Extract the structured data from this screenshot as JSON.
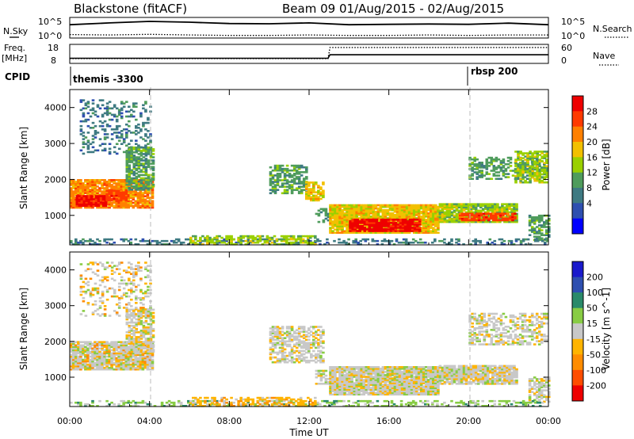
{
  "header": {
    "station": "Blackstone (fitACF)",
    "beam_dates": "Beam 09 01/Aug/2015 - 02/Aug/2015"
  },
  "panels": {
    "nsky": {
      "left_label": "N.Sky",
      "left_ticks": [
        "10^5",
        "10^0"
      ],
      "right_label": "N.Search",
      "right_ticks": [
        "10^5",
        "10^0"
      ]
    },
    "freq": {
      "left_label_1": "Freq.",
      "left_label_2": "[MHz]",
      "left_ticks": [
        "18",
        "8"
      ],
      "right_label": "Nave",
      "right_ticks": [
        "60",
        "0"
      ]
    },
    "cpid": {
      "label": "CPID",
      "programs": [
        "themis -3300",
        "rbsp 200"
      ]
    }
  },
  "colors": {
    "power": [
      "#0000ff",
      "#2e4fb0",
      "#3e7a82",
      "#4f9c5c",
      "#9ad000",
      "#f2c000",
      "#ff8000",
      "#ff3a00",
      "#ee0000"
    ],
    "velocity": [
      "#ee0000",
      "#ff4d00",
      "#ff8c00",
      "#ffb400",
      "#c8c8c8",
      "#88cc44",
      "#2a8a6a",
      "#2e4fb0",
      "#1a1acc"
    ],
    "ground_scatter": "#c8c8c8"
  },
  "chart_data": [
    {
      "type": "line",
      "title": "Blackstone (fitACF)",
      "series": [
        {
          "name": "N.Sky",
          "x": [
            0,
            2,
            4,
            6,
            8,
            10,
            12,
            14,
            16,
            18,
            20,
            22,
            24
          ],
          "values": [
            2000,
            6000,
            15000,
            9000,
            4000,
            3500,
            6000,
            2000,
            2500,
            3000,
            2500,
            5000,
            2000
          ]
        },
        {
          "name": "N.Search",
          "x": [
            0,
            2,
            4,
            6,
            8,
            10,
            12,
            14,
            16,
            18,
            20,
            22,
            24
          ],
          "values": [
            5,
            4,
            6,
            4,
            3,
            3,
            4,
            3,
            3,
            4,
            3,
            4,
            4
          ]
        }
      ],
      "ylim": [
        1,
        100000
      ],
      "log_y": true
    },
    {
      "type": "line",
      "series": [
        {
          "name": "Freq.",
          "x": [
            0,
            12.95,
            13.05,
            24
          ],
          "values": [
            10.5,
            10.5,
            12.5,
            12.5
          ]
        },
        {
          "name": "Nave",
          "x": [
            0,
            12.95,
            13.05,
            24
          ],
          "values": [
            14,
            14,
            52,
            52
          ]
        }
      ]
    },
    {
      "type": "heatmap",
      "ylabel": "Slant Range [km]",
      "colorbar_label": "Power [dB]",
      "colorbar_ticks": [
        "28",
        "24",
        "20",
        "16",
        "12",
        "8",
        "4"
      ],
      "x_ticks": [
        "00:00",
        "04:00",
        "08:00",
        "12:00",
        "16:00",
        "20:00",
        "00:00"
      ],
      "y_ticks": [
        "4000",
        "3000",
        "2000",
        "1000"
      ],
      "ylim": [
        180,
        4500
      ],
      "xlim": [
        0,
        24
      ],
      "regions": [
        {
          "t": [
            0.0,
            4.2
          ],
          "r": [
            1200,
            2000
          ],
          "level": 6,
          "fill": 0.9
        },
        {
          "t": [
            0.3,
            1.8
          ],
          "r": [
            1250,
            1550
          ],
          "level": 8,
          "fill": 0.95
        },
        {
          "t": [
            1.8,
            2.8
          ],
          "r": [
            1400,
            1700
          ],
          "level": 7,
          "fill": 0.9
        },
        {
          "t": [
            0.5,
            4.1
          ],
          "r": [
            2700,
            4200
          ],
          "level": 2,
          "fill": 0.25
        },
        {
          "t": [
            2.8,
            4.2
          ],
          "r": [
            1700,
            2900
          ],
          "level": 3,
          "fill": 0.7
        },
        {
          "t": [
            10.0,
            11.8
          ],
          "r": [
            1600,
            2400
          ],
          "level": 3,
          "fill": 0.6
        },
        {
          "t": [
            11.8,
            12.7
          ],
          "r": [
            1400,
            1900
          ],
          "level": 5,
          "fill": 0.7
        },
        {
          "t": [
            12.3,
            13.0
          ],
          "r": [
            800,
            1200
          ],
          "level": 3,
          "fill": 0.5
        },
        {
          "t": [
            13.0,
            18.5
          ],
          "r": [
            500,
            1300
          ],
          "level": 5,
          "fill": 0.95
        },
        {
          "t": [
            14.0,
            17.5
          ],
          "r": [
            550,
            900
          ],
          "level": 8,
          "fill": 0.9
        },
        {
          "t": [
            18.5,
            22.4
          ],
          "r": [
            800,
            1300
          ],
          "level": 4,
          "fill": 0.9
        },
        {
          "t": [
            19.5,
            22.3
          ],
          "r": [
            850,
            1050
          ],
          "level": 7,
          "fill": 0.8
        },
        {
          "t": [
            20.0,
            23.9
          ],
          "r": [
            2000,
            2600
          ],
          "level": 3,
          "fill": 0.5
        },
        {
          "t": [
            22.3,
            23.9
          ],
          "r": [
            1900,
            2800
          ],
          "level": 4,
          "fill": 0.6
        },
        {
          "t": [
            23.0,
            24.0
          ],
          "r": [
            300,
            1000
          ],
          "level": 3,
          "fill": 0.6
        },
        {
          "t": [
            0.0,
            24.0
          ],
          "r": [
            180,
            320
          ],
          "level": 2,
          "fill": 0.35
        },
        {
          "t": [
            6.0,
            12.3
          ],
          "r": [
            180,
            450
          ],
          "level": 4,
          "fill": 0.5
        }
      ]
    },
    {
      "type": "heatmap",
      "ylabel": "Slant Range [km]",
      "xlabel": "Time UT",
      "colorbar_label": "Velocity [m s^-1]",
      "colorbar_ticks": [
        "200",
        "100",
        "50",
        "15",
        "-15",
        "-50",
        "-100",
        "-200"
      ],
      "x_ticks": [
        "00:00",
        "04:00",
        "08:00",
        "12:00",
        "16:00",
        "20:00",
        "00:00"
      ],
      "y_ticks": [
        "4000",
        "3000",
        "2000",
        "1000"
      ],
      "ylim": [
        180,
        4500
      ],
      "xlim": [
        0,
        24
      ],
      "regions": [
        {
          "t": [
            0.0,
            4.2
          ],
          "r": [
            1200,
            2000
          ],
          "level": 4,
          "fill": 0.9,
          "speck": 2
        },
        {
          "t": [
            2.8,
            4.2
          ],
          "r": [
            1700,
            2900
          ],
          "level": 4,
          "fill": 0.7,
          "speck": 3
        },
        {
          "t": [
            0.5,
            4.1
          ],
          "r": [
            2700,
            4200
          ],
          "level": 4,
          "fill": 0.25,
          "speck": 2
        },
        {
          "t": [
            10.0,
            12.7
          ],
          "r": [
            1400,
            2400
          ],
          "level": 4,
          "fill": 0.6
        },
        {
          "t": [
            12.3,
            13.0
          ],
          "r": [
            800,
            1200
          ],
          "level": 4,
          "fill": 0.5
        },
        {
          "t": [
            13.0,
            18.5
          ],
          "r": [
            500,
            1300
          ],
          "level": 4,
          "fill": 0.95
        },
        {
          "t": [
            18.5,
            22.4
          ],
          "r": [
            800,
            1300
          ],
          "level": 4,
          "fill": 0.9
        },
        {
          "t": [
            20.0,
            23.9
          ],
          "r": [
            1900,
            2800
          ],
          "level": 4,
          "fill": 0.5
        },
        {
          "t": [
            23.0,
            24.0
          ],
          "r": [
            300,
            1000
          ],
          "level": 4,
          "fill": 0.6
        },
        {
          "t": [
            0.0,
            24.0
          ],
          "r": [
            180,
            320
          ],
          "level": 5,
          "fill": 0.35
        },
        {
          "t": [
            6.0,
            12.3
          ],
          "r": [
            180,
            450
          ],
          "level": 3,
          "fill": 0.5
        }
      ]
    }
  ]
}
